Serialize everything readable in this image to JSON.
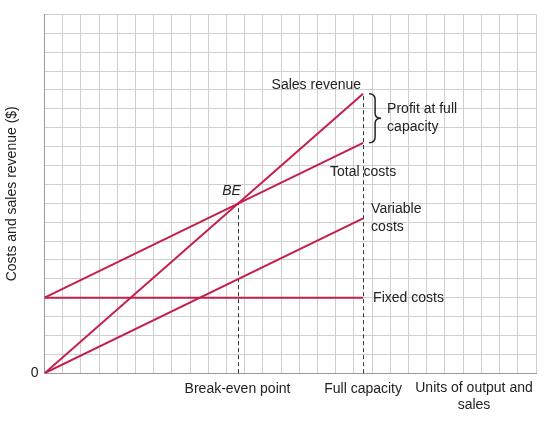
{
  "chart_data": {
    "type": "line",
    "x_label": "Units of output and sales",
    "y_label": "Costs and sales revenue ($)",
    "series": [
      {
        "name": "Sales revenue",
        "color": "#c41e4a",
        "x": [
          0,
          17.5
        ],
        "values": [
          0,
          14.8
        ]
      },
      {
        "name": "Total costs",
        "color": "#c41e4a",
        "x": [
          0,
          17.5
        ],
        "values": [
          4,
          12.2
        ]
      },
      {
        "name": "Variable costs",
        "color": "#c41e4a",
        "x": [
          0,
          17.5
        ],
        "values": [
          0,
          8.2
        ]
      },
      {
        "name": "Fixed costs",
        "color": "#c41e4a",
        "x": [
          0,
          17.5
        ],
        "values": [
          4,
          4
        ]
      }
    ],
    "xlim": [
      0,
      27
    ],
    "ylim": [
      0,
      19
    ],
    "xticks": [
      {
        "value": 0,
        "label": null
      },
      {
        "value": 1,
        "label": null
      },
      {
        "value": 2,
        "label": null
      },
      {
        "value": 3,
        "label": null
      },
      {
        "value": 4,
        "label": null
      },
      {
        "value": 5,
        "label": null
      },
      {
        "value": 6,
        "label": null
      },
      {
        "value": 7,
        "label": null
      },
      {
        "value": 8,
        "label": null
      },
      {
        "value": 9,
        "label": null
      },
      {
        "value": 10,
        "label": null
      },
      {
        "value": 10.6,
        "label": "Break-even point"
      },
      {
        "value": 11,
        "label": null
      },
      {
        "value": 12,
        "label": null
      },
      {
        "value": 13,
        "label": null
      },
      {
        "value": 14,
        "label": null
      },
      {
        "value": 15,
        "label": null
      },
      {
        "value": 16,
        "label": null
      },
      {
        "value": 17,
        "label": null
      },
      {
        "value": 17.5,
        "label": "Full capacity"
      },
      {
        "value": 18,
        "label": null
      },
      {
        "value": 19,
        "label": null
      },
      {
        "value": 20,
        "label": null
      },
      {
        "value": 21,
        "label": null
      },
      {
        "value": 22,
        "label": null
      },
      {
        "value": 23,
        "label": null
      },
      {
        "value": 24,
        "label": null
      },
      {
        "value": 25,
        "label": null
      },
      {
        "value": 26,
        "label": null
      },
      {
        "value": 27,
        "label": null
      }
    ],
    "yticks": [
      0,
      {
        "value": 1,
        "label": null
      },
      {
        "value": 2,
        "label": null
      },
      {
        "value": 3,
        "label": null
      },
      {
        "value": 4,
        "label": null
      },
      {
        "value": 5,
        "label": null
      },
      {
        "value": 6,
        "label": null
      },
      {
        "value": 7,
        "label": null
      },
      {
        "value": 8,
        "label": null
      },
      {
        "value": 9,
        "label": null
      },
      {
        "value": 10,
        "label": null
      },
      {
        "value": 11,
        "label": null
      },
      {
        "value": 12,
        "label": null
      },
      {
        "value": 13,
        "label": null
      },
      {
        "value": 14,
        "label": null
      },
      {
        "value": 15,
        "label": null
      },
      {
        "value": 16,
        "label": null
      },
      {
        "value": 17,
        "label": null
      },
      {
        "value": 18,
        "label": null
      },
      {
        "value": 19,
        "label": null
      }
    ],
    "grid": true,
    "annotations": [
      {
        "text": "BE",
        "x": 10.6,
        "y": 8.97
      },
      {
        "text": "Profit at full capacity",
        "x": 17.5,
        "y": [
          12.2,
          14.8
        ]
      }
    ]
  }
}
